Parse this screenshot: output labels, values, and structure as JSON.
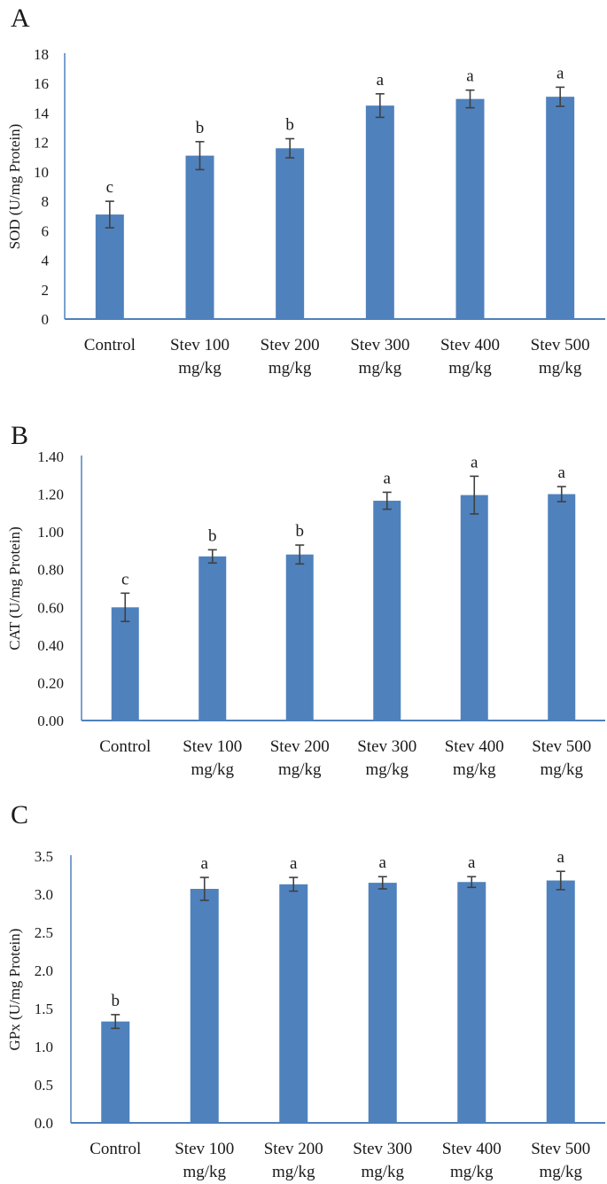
{
  "colors": {
    "bar": "#4f81bd",
    "axis": "#4f81bd",
    "error_bar": "#404040",
    "text": "#1a1a1a"
  },
  "chart_data": [
    {
      "type": "bar",
      "panel": "A",
      "title": "",
      "xlabel": "",
      "ylabel": "SOD (U/mg Protein)",
      "categories": [
        [
          "Control"
        ],
        [
          "Stev 100",
          "mg/kg"
        ],
        [
          "Stev 200",
          "mg/kg"
        ],
        [
          "Stev 300",
          "mg/kg"
        ],
        [
          "Stev 400",
          "mg/kg"
        ],
        [
          "Stev 500",
          "mg/kg"
        ]
      ],
      "values": [
        7.1,
        11.1,
        11.6,
        14.5,
        14.95,
        15.1
      ],
      "errors": [
        0.9,
        0.95,
        0.65,
        0.8,
        0.6,
        0.65
      ],
      "significance": [
        "c",
        "b",
        "b",
        "a",
        "a",
        "a"
      ],
      "ylim": [
        0,
        18
      ],
      "yticks": [
        "0",
        "2",
        "4",
        "6",
        "8",
        "10",
        "12",
        "14",
        "16",
        "18"
      ],
      "grid": false
    },
    {
      "type": "bar",
      "panel": "B",
      "title": "",
      "xlabel": "",
      "ylabel": "CAT (U/mg Protein)",
      "categories": [
        [
          "Control"
        ],
        [
          "Stev 100",
          "mg/kg"
        ],
        [
          "Stev 200",
          "mg/kg"
        ],
        [
          "Stev 300",
          "mg/kg"
        ],
        [
          "Stev 400",
          "mg/kg"
        ],
        [
          "Stev 500",
          "mg/kg"
        ]
      ],
      "values": [
        0.6,
        0.87,
        0.88,
        1.165,
        1.195,
        1.2
      ],
      "errors": [
        0.075,
        0.035,
        0.05,
        0.045,
        0.1,
        0.04
      ],
      "significance": [
        "c",
        "b",
        "b",
        "a",
        "a",
        "a"
      ],
      "ylim": [
        0,
        1.4
      ],
      "yticks": [
        "0.00",
        "0.20",
        "0.40",
        "0.60",
        "0.80",
        "1.00",
        "1.20",
        "1.40"
      ],
      "grid": false
    },
    {
      "type": "bar",
      "panel": "C",
      "title": "",
      "xlabel": "",
      "ylabel": "GPx (U/mg Protein)",
      "categories": [
        [
          "Control"
        ],
        [
          "Stev 100",
          "mg/kg"
        ],
        [
          "Stev 200",
          "mg/kg"
        ],
        [
          "Stev 300",
          "mg/kg"
        ],
        [
          "Stev 400",
          "mg/kg"
        ],
        [
          "Stev 500",
          "mg/kg"
        ]
      ],
      "values": [
        1.33,
        3.07,
        3.13,
        3.15,
        3.16,
        3.18
      ],
      "errors": [
        0.09,
        0.15,
        0.09,
        0.08,
        0.07,
        0.12
      ],
      "significance": [
        "b",
        "a",
        "a",
        "a",
        "a",
        "a"
      ],
      "ylim": [
        0,
        3.5
      ],
      "yticks": [
        "0.0",
        "0.5",
        "1.0",
        "1.5",
        "2.0",
        "2.5",
        "3.0",
        "3.5"
      ],
      "grid": false
    }
  ]
}
